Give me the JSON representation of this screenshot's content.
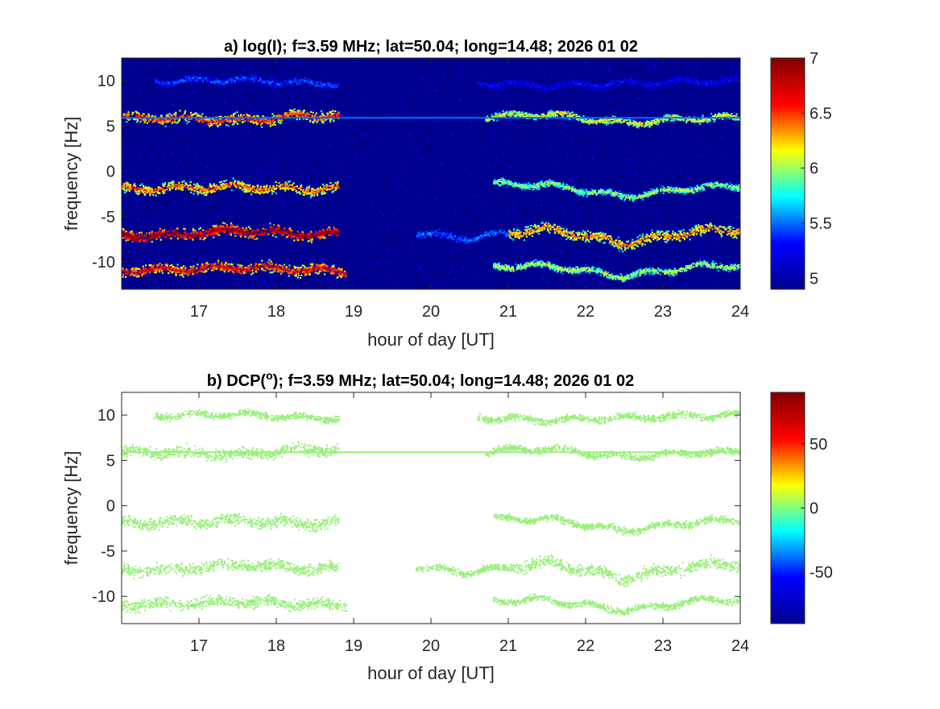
{
  "colormap": [
    "#00008f",
    "#0000ff",
    "#00ffff",
    "#ffff00",
    "#ff0000",
    "#800000"
  ],
  "chart_data": [
    {
      "type": "heatmap",
      "title": "a) log(I); f=3.59 MHz;  lat=50.04; long=14.48; 2026 01 02",
      "xlabel": "hour of day [UT]",
      "ylabel": "frequency [Hz]",
      "xlim": [
        16,
        24
      ],
      "ylim": [
        -13,
        12.5
      ],
      "xticks": [
        17,
        18,
        19,
        20,
        21,
        22,
        23,
        24
      ],
      "yticks": [
        10,
        5,
        0,
        -5,
        -10
      ],
      "colorbar": {
        "range": [
          4.9,
          7
        ],
        "ticks": [
          "7",
          "6.5",
          "6",
          "5.5",
          "5"
        ],
        "tick_values": [
          7,
          6.5,
          6,
          5.5,
          5
        ]
      },
      "background_value": 4.95,
      "traces": [
        {
          "freq": [
            10,
            10.2,
            9.7,
            10.0,
            9.9,
            9.5,
            9.8,
            10.0
          ],
          "segments": [
            [
              16.4,
              18.8,
              5.35
            ],
            [
              20.6,
              24.0,
              5.2
            ]
          ]
        },
        {
          "freq": [
            6.0,
            5.7,
            6.3,
            5.8,
            6.0,
            6.4,
            5.4,
            6.0
          ],
          "segments": [
            [
              16.0,
              18.8,
              6.3
            ],
            [
              20.7,
              24.0,
              6.0
            ]
          ]
        },
        {
          "freq": [
            -1.8,
            -1.6,
            -1.9,
            -1.5,
            -1.3,
            -1.4,
            -2.7,
            -1.6
          ],
          "segments": [
            [
              16.0,
              18.8,
              6.2
            ],
            [
              20.8,
              24.0,
              5.85
            ]
          ]
        },
        {
          "freq": [
            -7.0,
            -6.4,
            -6.9,
            -6.5,
            -7.3,
            -6.2,
            -7.9,
            -6.4
          ],
          "segments": [
            [
              16.0,
              18.8,
              6.6
            ],
            [
              19.8,
              21.0,
              5.4
            ],
            [
              21.0,
              24.0,
              6.15
            ]
          ]
        },
        {
          "freq": [
            -10.8,
            -10.5,
            -10.8,
            -11.3,
            -10.4,
            -10.3,
            -11.5,
            -10.3
          ],
          "segments": [
            [
              16.0,
              18.9,
              6.4
            ],
            [
              20.8,
              24.0,
              5.9
            ]
          ]
        }
      ],
      "constant_line": {
        "freq": 5.9,
        "x": [
          16.0,
          24.0
        ],
        "value": 5.5
      }
    },
    {
      "type": "heatmap",
      "title": "b) DCP(",
      "title_superscript": "o",
      "title_rest": "); f=3.59 MHz;  lat=50.04; long=14.48; 2026 01 02",
      "xlabel": "hour of day [UT]",
      "ylabel": "frequency [Hz]",
      "xlim": [
        16,
        24
      ],
      "ylim": [
        -13,
        12.5
      ],
      "xticks": [
        17,
        18,
        19,
        20,
        21,
        22,
        23,
        24
      ],
      "yticks": [
        10,
        5,
        0,
        -5,
        -10
      ],
      "colorbar": {
        "range": [
          -90,
          90
        ],
        "ticks": [
          "50",
          "0",
          "-50"
        ],
        "tick_values": [
          50,
          0,
          -50
        ]
      },
      "point_value": 18,
      "point_color": "#99f07a"
    }
  ]
}
